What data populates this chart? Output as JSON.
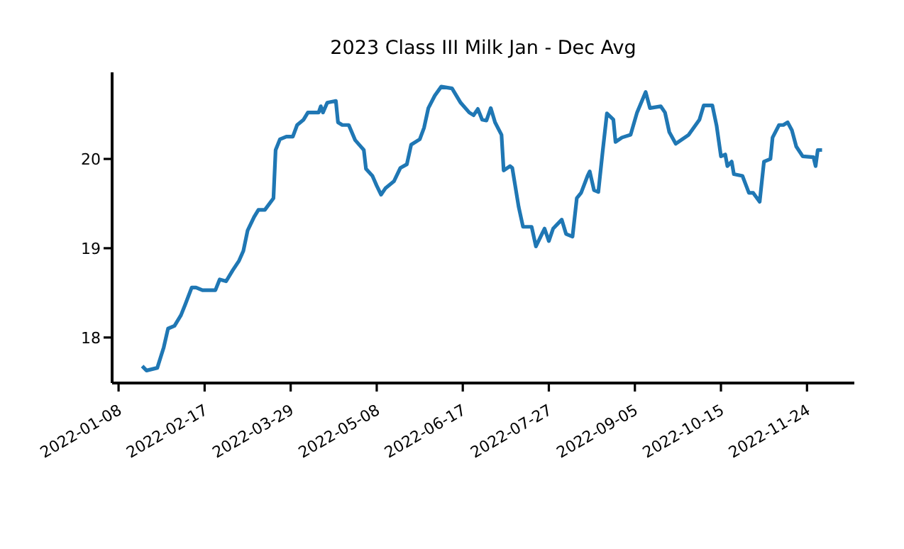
{
  "chart_data": {
    "type": "line",
    "title": "2023 Class III Milk Jan - Dec Avg",
    "x": [
      "2022-01-19",
      "2022-01-21",
      "2022-01-26",
      "2022-01-29",
      "2022-01-31",
      "2022-02-03",
      "2022-02-06",
      "2022-02-08",
      "2022-02-11",
      "2022-02-13",
      "2022-02-16",
      "2022-02-22",
      "2022-02-24",
      "2022-02-27",
      "2022-03-02",
      "2022-03-05",
      "2022-03-07",
      "2022-03-09",
      "2022-03-12",
      "2022-03-14",
      "2022-03-17",
      "2022-03-21",
      "2022-03-22",
      "2022-03-24",
      "2022-03-27",
      "2022-03-30",
      "2022-04-01",
      "2022-04-04",
      "2022-04-06",
      "2022-04-11",
      "2022-04-12",
      "2022-04-13",
      "2022-04-15",
      "2022-04-19",
      "2022-04-20",
      "2022-04-22",
      "2022-04-25",
      "2022-04-28",
      "2022-05-02",
      "2022-05-03",
      "2022-05-06",
      "2022-05-08",
      "2022-05-10",
      "2022-05-12",
      "2022-05-16",
      "2022-05-19",
      "2022-05-22",
      "2022-05-24",
      "2022-05-28",
      "2022-05-30",
      "2022-06-01",
      "2022-06-04",
      "2022-06-07",
      "2022-06-12",
      "2022-06-16",
      "2022-06-20",
      "2022-06-22",
      "2022-06-24",
      "2022-06-26",
      "2022-06-28",
      "2022-06-30",
      "2022-07-02",
      "2022-07-05",
      "2022-07-06",
      "2022-07-09",
      "2022-07-10",
      "2022-07-13",
      "2022-07-15",
      "2022-07-19",
      "2022-07-21",
      "2022-07-25",
      "2022-07-27",
      "2022-07-29",
      "2022-08-02",
      "2022-08-04",
      "2022-08-07",
      "2022-08-09",
      "2022-08-11",
      "2022-08-14",
      "2022-08-15",
      "2022-08-17",
      "2022-08-19",
      "2022-08-21",
      "2022-08-23",
      "2022-08-26",
      "2022-08-27",
      "2022-08-30",
      "2022-09-03",
      "2022-09-06",
      "2022-09-10",
      "2022-09-12",
      "2022-09-17",
      "2022-09-19",
      "2022-09-21",
      "2022-09-24",
      "2022-09-27",
      "2022-09-30",
      "2022-10-05",
      "2022-10-07",
      "2022-10-11",
      "2022-10-13",
      "2022-10-15",
      "2022-10-17",
      "2022-10-18",
      "2022-10-20",
      "2022-10-21",
      "2022-10-25",
      "2022-10-28",
      "2022-10-30",
      "2022-11-02",
      "2022-11-04",
      "2022-11-07",
      "2022-11-08",
      "2022-11-11",
      "2022-11-13",
      "2022-11-15",
      "2022-11-17",
      "2022-11-19",
      "2022-11-22",
      "2022-11-27",
      "2022-11-28",
      "2022-11-29",
      "2022-12-01"
    ],
    "series": [
      {
        "color": "#1f77b4",
        "values": [
          17.68,
          17.63,
          17.66,
          17.89,
          18.1,
          18.13,
          18.25,
          18.37,
          18.56,
          18.56,
          18.53,
          18.53,
          18.65,
          18.63,
          18.75,
          18.86,
          18.97,
          19.2,
          19.35,
          19.43,
          19.43,
          19.56,
          20.1,
          20.22,
          20.25,
          20.25,
          20.38,
          20.44,
          20.52,
          20.52,
          20.59,
          20.52,
          20.63,
          20.65,
          20.41,
          20.38,
          20.38,
          20.21,
          20.1,
          19.89,
          19.81,
          19.7,
          19.6,
          19.67,
          19.75,
          19.9,
          19.94,
          20.16,
          20.22,
          20.35,
          20.57,
          20.71,
          20.81,
          20.79,
          20.63,
          20.52,
          20.49,
          20.56,
          20.44,
          20.43,
          20.57,
          20.41,
          20.27,
          19.87,
          19.92,
          19.9,
          19.46,
          19.24,
          19.24,
          19.02,
          19.22,
          19.08,
          19.22,
          19.32,
          19.16,
          19.13,
          19.56,
          19.62,
          19.81,
          19.86,
          19.65,
          19.63,
          20.08,
          20.51,
          20.44,
          20.19,
          20.24,
          20.27,
          20.52,
          20.75,
          20.57,
          20.59,
          20.52,
          20.3,
          20.17,
          20.22,
          20.27,
          20.44,
          20.6,
          20.6,
          20.37,
          20.03,
          20.05,
          19.92,
          19.97,
          19.83,
          19.81,
          19.62,
          19.62,
          19.52,
          19.97,
          20.0,
          20.24,
          20.38,
          20.38,
          20.41,
          20.32,
          20.14,
          20.03,
          20.02,
          19.92,
          20.1,
          20.1
        ]
      }
    ],
    "xlim": [
      "2022-01-05",
      "2022-12-16"
    ],
    "xticks": [
      "2022-01-08",
      "2022-02-17",
      "2022-03-29",
      "2022-05-08",
      "2022-06-17",
      "2022-07-27",
      "2022-09-05",
      "2022-10-15",
      "2022-11-24"
    ],
    "ylim": [
      17.49,
      20.97
    ],
    "yticks": [
      18,
      19,
      20
    ],
    "grid": false,
    "legend": false,
    "marker": "none",
    "line_style": "solid"
  }
}
